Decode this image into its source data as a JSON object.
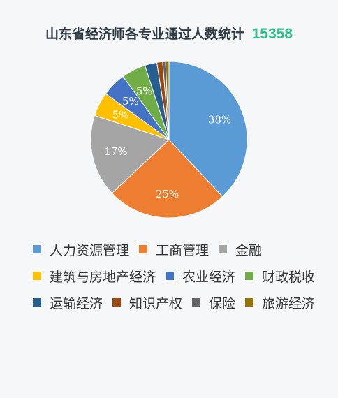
{
  "title": "山东省经济师各专业通过人数统计",
  "total": "15358",
  "chart_data": {
    "type": "pie",
    "title": "山东省经济师各专业通过人数统计",
    "legend_position": "bottom",
    "slices": [
      {
        "name": "人力资源管理",
        "value": 38,
        "label": "38%",
        "color": "#5b9bd5"
      },
      {
        "name": "工商管理",
        "value": 25,
        "label": "25%",
        "color": "#ed7d31"
      },
      {
        "name": "金融",
        "value": 17,
        "label": "17%",
        "color": "#a5a5a5"
      },
      {
        "name": "建筑与房地产经济",
        "value": 5,
        "label": "5%",
        "color": "#ffc000"
      },
      {
        "name": "农业经济",
        "value": 5,
        "label": "5%",
        "color": "#4472c4"
      },
      {
        "name": "财政税收",
        "value": 5,
        "label": "5%",
        "color": "#70ad47"
      },
      {
        "name": "运输经济",
        "value": 2.5,
        "label": "",
        "color": "#255e91"
      },
      {
        "name": "知识产权",
        "value": 1.2,
        "label": "",
        "color": "#9e480e"
      },
      {
        "name": "保险",
        "value": 0.6,
        "label": "",
        "color": "#636363"
      },
      {
        "name": "旅游经济",
        "value": 0.7,
        "label": "",
        "color": "#997300"
      }
    ]
  }
}
